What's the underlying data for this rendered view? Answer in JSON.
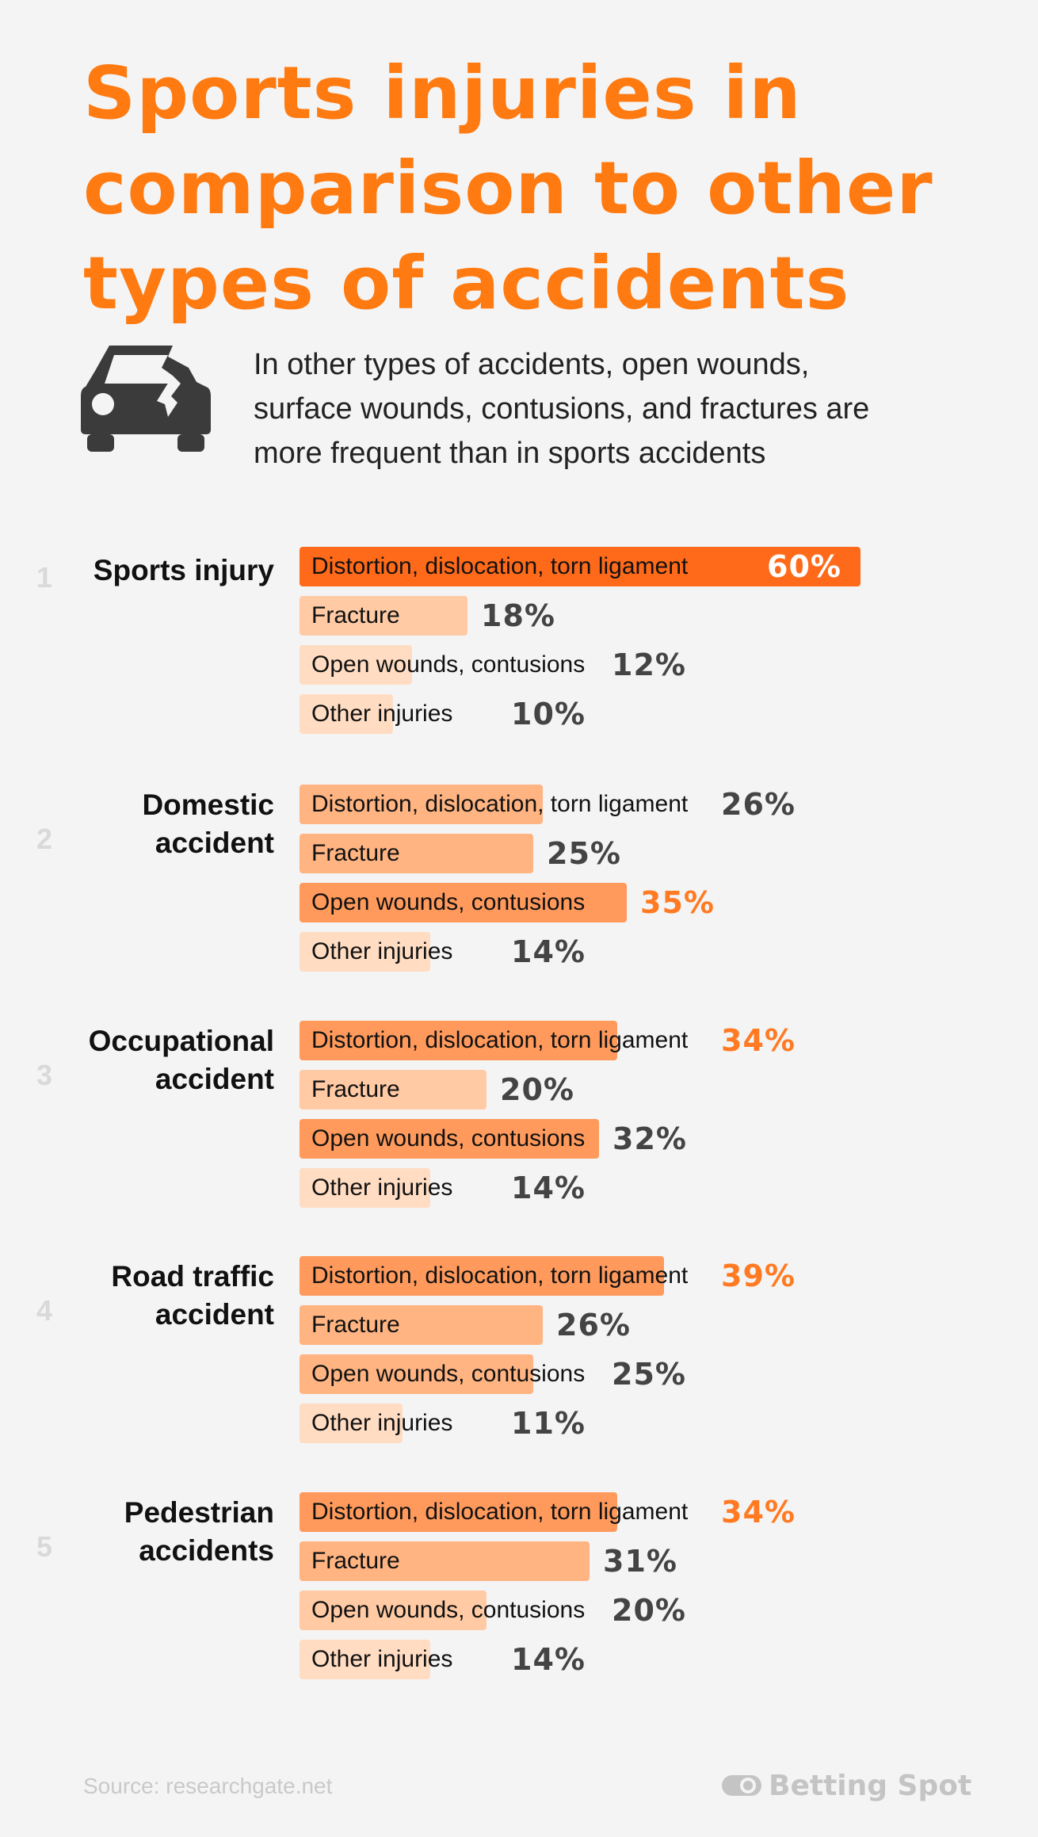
{
  "title_lines": [
    "Sports injuries in",
    "comparison to other",
    "types of accidents"
  ],
  "subtitle_lines": [
    "In other types of accidents, open wounds,",
    "surface wounds, contusions, and fractures are",
    "more frequent than in sports accidents"
  ],
  "icons": {
    "car": "damaged-car-icon",
    "brand": "betting-spot-logo-icon"
  },
  "colors": {
    "accent": "#ff7a10",
    "bar_levels": [
      "#ff6a1a",
      "#ff9a5c",
      "#ffb482",
      "#ffcaa4",
      "#ffdcc2"
    ]
  },
  "footer": {
    "source": "Source: researchgate.net",
    "brand": "Betting Spot"
  },
  "chart_data": {
    "type": "bar",
    "categories": [
      "Distortion, dislocation, torn ligament",
      "Fracture",
      "Open wounds, contusions",
      "Other injuries"
    ],
    "groups": [
      {
        "rank": "1",
        "label_lines": [
          "Sports injury"
        ],
        "values": [
          60,
          18,
          12,
          10
        ],
        "value_labels": [
          "60%",
          "18%",
          "12%",
          "10%"
        ],
        "highlight": 0
      },
      {
        "rank": "2",
        "label_lines": [
          "Domestic",
          "accident"
        ],
        "values": [
          26,
          25,
          35,
          14
        ],
        "value_labels": [
          "26%",
          "25%",
          "35%",
          "14%"
        ],
        "highlight": 2
      },
      {
        "rank": "3",
        "label_lines": [
          "Occupational",
          "accident"
        ],
        "values": [
          34,
          20,
          32,
          14
        ],
        "value_labels": [
          "34%",
          "20%",
          "32%",
          "14%"
        ],
        "highlight": 0
      },
      {
        "rank": "4",
        "label_lines": [
          "Road traffic",
          "accident"
        ],
        "values": [
          39,
          26,
          25,
          11
        ],
        "value_labels": [
          "39%",
          "26%",
          "25%",
          "11%"
        ],
        "highlight": 0
      },
      {
        "rank": "5",
        "label_lines": [
          "Pedestrian",
          "accidents"
        ],
        "values": [
          34,
          31,
          20,
          14
        ],
        "value_labels": [
          "34%",
          "31%",
          "20%",
          "14%"
        ],
        "highlight": 0
      }
    ]
  }
}
